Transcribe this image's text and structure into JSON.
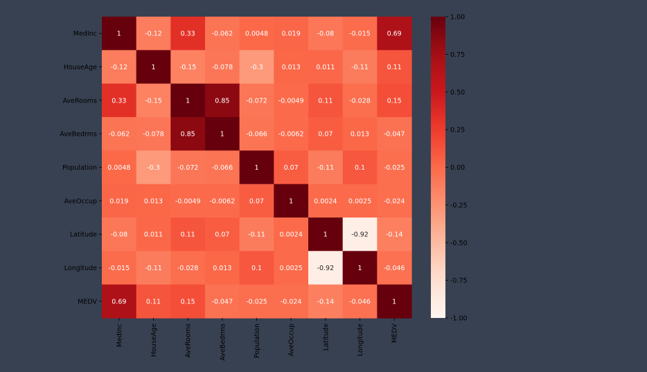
{
  "chart_data": {
    "type": "heatmap",
    "title": "",
    "xlabel": "",
    "ylabel": "",
    "labels": [
      "MedInc",
      "HouseAge",
      "AveRooms",
      "AveBedrms",
      "Population",
      "AveOccup",
      "Latitude",
      "Longitude",
      "MEDV"
    ],
    "matrix": [
      [
        "1",
        "-0.12",
        "0.33",
        "-0.062",
        "0.0048",
        "0.019",
        "-0.08",
        "-0.015",
        "0.69"
      ],
      [
        "-0.12",
        "1",
        "-0.15",
        "-0.078",
        "-0.3",
        "0.013",
        "0.011",
        "-0.11",
        "0.11"
      ],
      [
        "0.33",
        "-0.15",
        "1",
        "0.85",
        "-0.072",
        "-0.0049",
        "0.11",
        "-0.028",
        "0.15"
      ],
      [
        "-0.062",
        "-0.078",
        "0.85",
        "1",
        "-0.066",
        "-0.0062",
        "0.07",
        "0.013",
        "-0.047"
      ],
      [
        "0.0048",
        "-0.3",
        "-0.072",
        "-0.066",
        "1",
        "0.07",
        "-0.11",
        "0.1",
        "-0.025"
      ],
      [
        "0.019",
        "0.013",
        "-0.0049",
        "-0.0062",
        "0.07",
        "1",
        "0.0024",
        "0.0025",
        "-0.024"
      ],
      [
        "-0.08",
        "0.011",
        "0.11",
        "0.07",
        "-0.11",
        "0.0024",
        "1",
        "-0.92",
        "-0.14"
      ],
      [
        "-0.015",
        "-0.11",
        "-0.028",
        "0.013",
        "0.1",
        "0.0025",
        "-0.92",
        "1",
        "-0.046"
      ],
      [
        "0.69",
        "0.11",
        "0.15",
        "-0.047",
        "-0.025",
        "-0.024",
        "-0.14",
        "-0.046",
        "1"
      ]
    ],
    "colorbar": {
      "min": -1.0,
      "max": 1.0,
      "ticks": [
        "1.00",
        "0.75",
        "0.50",
        "0.25",
        "0.00",
        "-0.25",
        "-0.50",
        "-0.75",
        "-1.00"
      ],
      "colormap": "Reds"
    },
    "annotated": true
  },
  "colors": {
    "background": "#384152",
    "tick_text": "#000000",
    "cell_text_light": "#ffffff",
    "cell_text_dark": "#262626"
  }
}
